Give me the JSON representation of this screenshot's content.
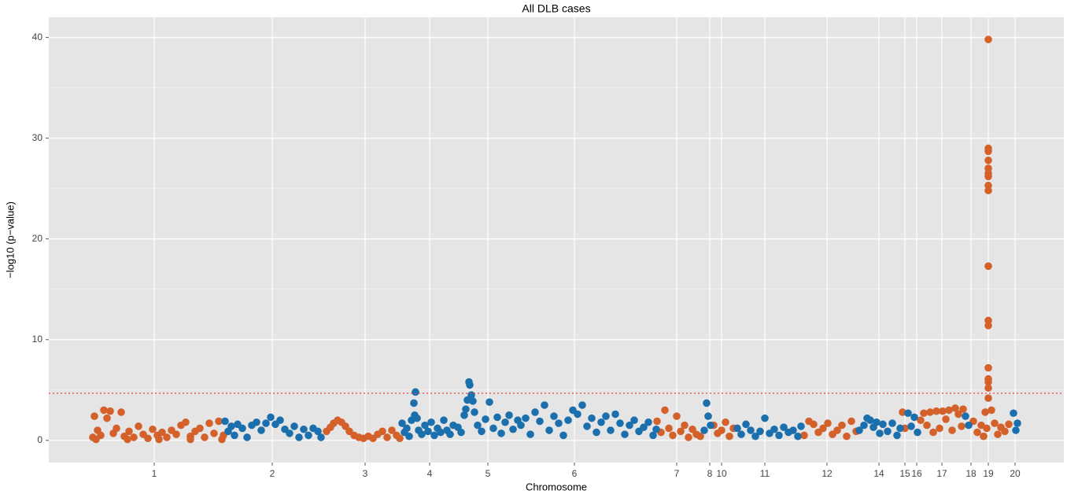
{
  "chart_data": {
    "type": "scatter",
    "title": "All DLB cases",
    "x_label": "Chromosome",
    "y_label": "−log10 (p−value)",
    "xlim": [
      0,
      1290
    ],
    "ylim": [
      -2.2,
      42
    ],
    "yticks": [
      0,
      10,
      20,
      30,
      40
    ],
    "y_minor_grid": [
      5,
      15,
      25,
      35
    ],
    "xticks": [
      {
        "value": 134,
        "label": "1"
      },
      {
        "value": 284,
        "label": "2"
      },
      {
        "value": 402,
        "label": "3"
      },
      {
        "value": 484,
        "label": "4"
      },
      {
        "value": 558,
        "label": "5"
      },
      {
        "value": 668,
        "label": "6"
      },
      {
        "value": 798,
        "label": "7"
      },
      {
        "value": 840,
        "label": "8"
      },
      {
        "value": 855,
        "label": "10"
      },
      {
        "value": 910,
        "label": "11"
      },
      {
        "value": 989,
        "label": "12"
      },
      {
        "value": 1055,
        "label": "14"
      },
      {
        "value": 1088,
        "label": "15"
      },
      {
        "value": 1103,
        "label": "16"
      },
      {
        "value": 1135,
        "label": "17"
      },
      {
        "value": 1172,
        "label": "18"
      },
      {
        "value": 1194,
        "label": "19"
      },
      {
        "value": 1228,
        "label": "20"
      }
    ],
    "grid": true,
    "background": "#e5e5e5",
    "threshold": 4.68,
    "threshold_color": "#e8464a",
    "series": [
      {
        "color": "#d4602a",
        "x": [
          56,
          58,
          62,
          66,
          70,
          74,
          78,
          82,
          86,
          92,
          96,
          102,
          108,
          114,
          120,
          126,
          132,
          138,
          144,
          150,
          156,
          162,
          168,
          174,
          180,
          186,
          192,
          198,
          204,
          210,
          216,
          222,
          60,
          100,
          140,
          180,
          220,
          353,
          358,
          362,
          367,
          372,
          377,
          382,
          388,
          394,
          400,
          406,
          412,
          418,
          424,
          430,
          436,
          442,
          446,
          773,
          778,
          783,
          788,
          793,
          798,
          803,
          808,
          813,
          818,
          823,
          828,
          845,
          850,
          855,
          860,
          865,
          870,
          960,
          966,
          972,
          978,
          984,
          990,
          996,
          1002,
          1008,
          1014,
          1020,
          1026,
          1085,
          1088,
          1108,
          1112,
          1116,
          1120,
          1124,
          1128,
          1132,
          1136,
          1140,
          1144,
          1148,
          1152,
          1156,
          1160,
          1162,
          1175,
          1180,
          1185,
          1188,
          1190,
          1192,
          1194,
          1194,
          1194,
          1194,
          1194,
          1194,
          1194,
          1194,
          1194,
          1194,
          1194,
          1194,
          1194,
          1194,
          1194,
          1194,
          1194,
          1198,
          1202,
          1206,
          1210,
          1215,
          1220
        ],
        "values": [
          0.3,
          2.4,
          1.0,
          0.5,
          3.0,
          2.2,
          2.9,
          0.7,
          1.2,
          2.8,
          0.4,
          0.9,
          0.3,
          1.4,
          0.6,
          0.2,
          1.1,
          0.5,
          0.8,
          0.3,
          1.0,
          0.6,
          1.5,
          1.8,
          0.4,
          0.9,
          1.2,
          0.3,
          1.7,
          0.7,
          1.9,
          0.5,
          0.1,
          0.1,
          0.1,
          0.1,
          0.1,
          0.9,
          1.3,
          1.7,
          2.0,
          1.8,
          1.4,
          0.9,
          0.5,
          0.3,
          0.2,
          0.4,
          0.2,
          0.6,
          0.9,
          0.3,
          1.0,
          0.5,
          0.2,
          1.9,
          0.8,
          3.0,
          1.2,
          0.5,
          2.4,
          0.9,
          1.5,
          0.3,
          1.1,
          0.6,
          0.4,
          1.5,
          0.7,
          1.0,
          1.8,
          0.4,
          1.2,
          0.5,
          1.9,
          1.6,
          0.8,
          1.2,
          1.7,
          0.6,
          1.0,
          1.5,
          0.4,
          1.9,
          0.9,
          2.8,
          1.2,
          2.0,
          2.7,
          1.5,
          2.8,
          0.8,
          2.9,
          1.2,
          2.9,
          2.1,
          3.0,
          1.0,
          3.2,
          2.6,
          1.4,
          3.1,
          1.9,
          0.8,
          1.5,
          0.4,
          2.8,
          1.2,
          39.8,
          29.0,
          28.7,
          27.8,
          27.0,
          26.5,
          26.2,
          25.3,
          24.8,
          17.3,
          11.9,
          11.4,
          7.2,
          6.1,
          5.8,
          5.2,
          4.2,
          3.0,
          1.7,
          0.6,
          1.3,
          0.9,
          1.6
        ]
      },
      {
        "color": "#1b6fad",
        "x": [
          224,
          228,
          232,
          236,
          240,
          246,
          252,
          258,
          264,
          270,
          276,
          282,
          288,
          294,
          300,
          306,
          312,
          318,
          324,
          330,
          336,
          342,
          346,
          449,
          452,
          455,
          458,
          461,
          464,
          465,
          466,
          468,
          470,
          474,
          478,
          482,
          486,
          490,
          494,
          498,
          502,
          506,
          510,
          514,
          520,
          524,
          528,
          530,
          532,
          534,
          535,
          537,
          539,
          541,
          545,
          550,
          555,
          560,
          565,
          570,
          575,
          580,
          585,
          590,
          596,
          600,
          606,
          612,
          618,
          624,
          630,
          636,
          642,
          648,
          654,
          660,
          666,
          672,
          678,
          684,
          690,
          696,
          702,
          708,
          714,
          720,
          726,
          732,
          738,
          744,
          750,
          756,
          762,
          768,
          772,
          833,
          836,
          838,
          841,
          875,
          880,
          886,
          892,
          898,
          904,
          910,
          916,
          922,
          928,
          934,
          940,
          946,
          952,
          956,
          1030,
          1036,
          1040,
          1044,
          1048,
          1052,
          1056,
          1060,
          1066,
          1072,
          1078,
          1082,
          1092,
          1096,
          1100,
          1104,
          1165,
          1169,
          1226,
          1229,
          1231
        ],
        "values": [
          1.9,
          0.9,
          1.4,
          0.5,
          1.6,
          1.2,
          0.3,
          1.5,
          1.8,
          1.0,
          1.7,
          2.3,
          1.6,
          2.0,
          1.1,
          0.7,
          1.4,
          0.3,
          1.1,
          0.5,
          1.2,
          0.9,
          0.3,
          1.7,
          0.8,
          1.2,
          0.4,
          2.0,
          3.7,
          2.5,
          4.8,
          2.2,
          1.0,
          0.6,
          1.5,
          0.9,
          1.8,
          0.5,
          1.2,
          0.8,
          2.0,
          1.0,
          0.6,
          1.5,
          1.3,
          0.8,
          2.5,
          3.1,
          4.0,
          5.8,
          5.5,
          4.5,
          3.9,
          2.8,
          1.5,
          0.9,
          2.1,
          3.8,
          1.2,
          2.3,
          0.7,
          1.8,
          2.5,
          1.1,
          2.0,
          1.5,
          2.2,
          0.6,
          2.8,
          1.9,
          3.5,
          1.0,
          2.4,
          1.7,
          0.5,
          2.0,
          3.0,
          2.6,
          3.5,
          1.4,
          2.2,
          0.8,
          1.8,
          2.4,
          1.0,
          2.6,
          1.7,
          0.6,
          1.5,
          2.0,
          0.9,
          1.3,
          1.8,
          0.5,
          1.1,
          1.0,
          3.7,
          2.4,
          1.5,
          1.2,
          0.6,
          1.6,
          1.0,
          0.4,
          0.9,
          2.2,
          0.7,
          1.1,
          0.5,
          1.3,
          0.8,
          1.0,
          0.4,
          1.4,
          1.0,
          1.5,
          2.2,
          2.0,
          1.3,
          1.8,
          0.7,
          1.6,
          0.9,
          1.7,
          0.5,
          1.2,
          2.7,
          1.4,
          2.3,
          0.8,
          2.4,
          1.5,
          2.7,
          1.0,
          1.7
        ]
      }
    ]
  }
}
